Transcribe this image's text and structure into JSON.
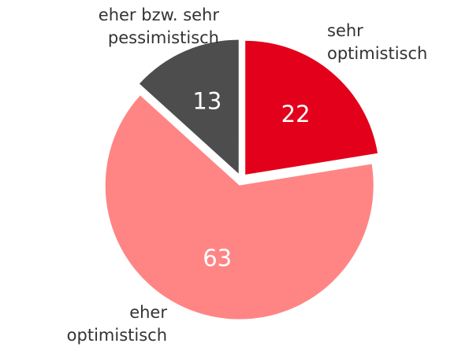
{
  "chart_data": {
    "type": "pie",
    "categories": [
      "sehr optimistisch",
      "eher optimistisch",
      "eher bzw. sehr pessimistisch"
    ],
    "values": [
      22,
      63,
      13
    ],
    "colors": [
      "#e2001a",
      "#ff8585",
      "#4d4d4d"
    ]
  }
}
